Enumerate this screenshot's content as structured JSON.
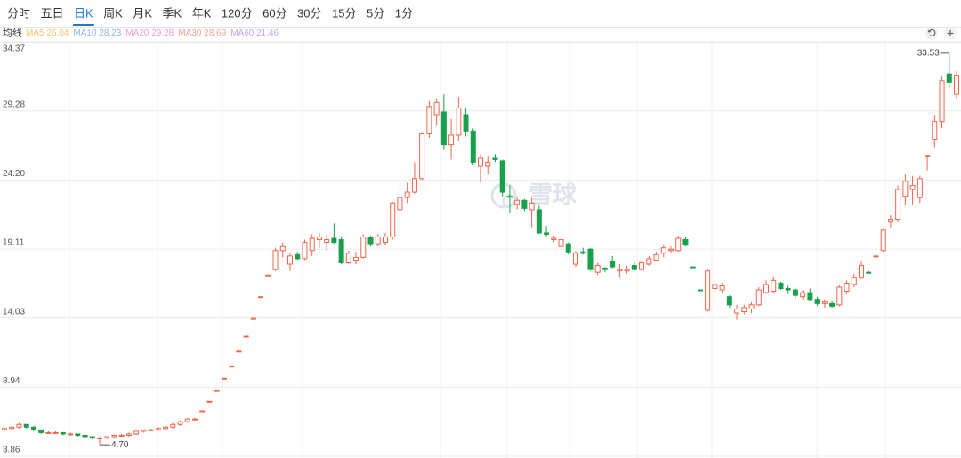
{
  "chart_data": {
    "type": "candlestick",
    "tabs": [
      "分时",
      "五日",
      "日K",
      "周K",
      "月K",
      "季K",
      "年K",
      "120分",
      "60分",
      "30分",
      "15分",
      "5分",
      "1分"
    ],
    "active_tab": 2,
    "indicator_title": "均线",
    "indicators": [
      {
        "label": "MA5 26.04",
        "color": "#f5c46e"
      },
      {
        "label": "MA10 28.23",
        "color": "#92b6ec"
      },
      {
        "label": "MA20 29.28",
        "color": "#ee9fd2"
      },
      {
        "label": "MA30 28.69",
        "color": "#f2a58f"
      },
      {
        "label": "MA60 21.46",
        "color": "#c3a6e6"
      }
    ],
    "watermark": "雪球",
    "up_color": "#f0654a",
    "down_color": "#18a04c",
    "ylim": [
      3.86,
      34.37
    ],
    "yticks": [
      3.86,
      8.94,
      14.03,
      19.11,
      {
        "value": 24.2,
        "label": "24.20"
      },
      29.28,
      34.37
    ],
    "grid": true,
    "high_label": "33.53",
    "low_label": "4.70",
    "open": [
      5.8,
      5.9,
      6.0,
      6.2,
      6.0,
      5.8,
      5.6,
      5.6,
      5.6,
      5.5,
      5.5,
      5.4,
      5.3,
      5.2,
      5.2,
      5.3,
      5.4,
      5.4,
      5.5,
      5.7,
      5.8,
      5.8,
      5.9,
      6.0,
      6.2,
      6.4,
      6.6,
      7.2,
      7.9,
      8.7,
      9.6,
      10.5,
      11.6,
      12.7,
      14.0,
      15.6,
      17.2,
      17.6,
      19.0,
      18.0,
      18.7,
      18.4,
      19.0,
      19.8,
      19.6,
      19.9,
      19.8,
      18.1,
      18.3,
      18.5,
      20.0,
      19.5,
      19.6,
      20.0,
      22.0,
      22.9,
      23.3,
      24.3,
      27.6,
      29.0,
      29.2,
      26.8,
      27.5,
      29.0,
      27.8,
      25.2,
      25.2,
      25.8,
      25.6,
      23.0,
      22.4,
      22.7,
      22.0,
      22.0,
      20.3,
      19.8,
      19.3,
      19.5,
      18.0,
      18.9,
      19.1,
      17.4,
      17.7,
      18.2,
      17.5,
      17.5,
      17.9,
      17.6,
      18.0,
      18.3,
      18.8,
      19.0,
      19.0,
      19.8,
      17.8,
      16.1,
      14.6,
      16.2,
      16.1,
      15.6,
      14.4,
      14.5,
      14.7,
      15.0,
      15.9,
      16.0,
      16.6,
      16.2,
      16.1,
      15.6,
      15.9,
      15.4,
      15.1,
      15.1,
      15.0,
      16.0,
      16.5,
      17.0,
      17.4,
      18.6,
      19.0,
      21.1,
      21.3,
      23.0,
      23.5,
      22.9,
      26.0,
      27.2,
      28.5,
      32.0,
      30.5
    ],
    "high": [
      5.9,
      6.1,
      6.3,
      6.2,
      6.1,
      5.8,
      5.7,
      5.7,
      5.6,
      5.6,
      5.5,
      5.4,
      5.3,
      5.3,
      5.3,
      5.4,
      5.5,
      5.6,
      5.7,
      5.8,
      5.9,
      6.0,
      6.1,
      6.3,
      6.5,
      6.7,
      6.7,
      7.2,
      7.9,
      8.7,
      9.6,
      10.5,
      11.6,
      12.7,
      14.0,
      15.6,
      17.2,
      19.2,
      19.6,
      18.8,
      18.9,
      19.8,
      20.2,
      20.3,
      20.2,
      21.0,
      20.0,
      19.0,
      18.9,
      20.2,
      20.1,
      20.2,
      20.3,
      22.6,
      23.8,
      24.0,
      25.5,
      27.7,
      30.0,
      30.2,
      30.5,
      28.7,
      30.3,
      29.5,
      28.0,
      26.1,
      26.0,
      26.1,
      25.7,
      23.8,
      23.0,
      22.8,
      22.9,
      22.3,
      20.8,
      20.1,
      20.0,
      19.6,
      19.0,
      19.2,
      19.2,
      18.1,
      17.8,
      18.6,
      18.0,
      17.9,
      18.2,
      18.3,
      18.6,
      18.9,
      19.4,
      19.3,
      20.1,
      20.0,
      17.8,
      16.1,
      17.6,
      16.8,
      16.6,
      15.7,
      15.0,
      15.0,
      15.2,
      16.3,
      16.8,
      17.1,
      16.7,
      16.4,
      16.2,
      16.1,
      16.2,
      15.6,
      15.4,
      15.3,
      16.5,
      16.8,
      17.3,
      18.2,
      17.5,
      18.6,
      20.6,
      21.6,
      23.8,
      24.6,
      24.5,
      24.5,
      26.0,
      29.0,
      31.8,
      33.53,
      32.2
    ],
    "low": [
      5.7,
      5.8,
      5.9,
      5.9,
      5.7,
      5.5,
      5.5,
      5.5,
      5.4,
      5.4,
      5.3,
      5.2,
      5.1,
      4.7,
      5.1,
      5.2,
      5.3,
      5.3,
      5.4,
      5.6,
      5.7,
      5.7,
      5.8,
      5.9,
      6.1,
      6.3,
      6.5,
      7.2,
      7.9,
      8.7,
      9.6,
      10.5,
      11.6,
      12.7,
      14.0,
      15.6,
      17.2,
      17.5,
      18.5,
      17.5,
      18.3,
      18.3,
      18.6,
      19.2,
      19.0,
      19.5,
      18.0,
      18.0,
      18.0,
      18.4,
      19.3,
      19.3,
      19.4,
      19.8,
      21.5,
      22.5,
      23.2,
      24.2,
      27.3,
      28.2,
      26.4,
      25.7,
      27.1,
      27.4,
      25.3,
      24.0,
      24.6,
      25.5,
      23.0,
      21.8,
      22.0,
      21.9,
      20.7,
      20.2,
      20.0,
      19.6,
      19.0,
      18.7,
      17.8,
      18.7,
      17.5,
      17.2,
      17.4,
      17.7,
      17.0,
      17.3,
      17.5,
      17.5,
      17.9,
      18.2,
      18.5,
      18.8,
      18.9,
      19.3,
      17.8,
      16.1,
      14.5,
      15.8,
      15.9,
      14.8,
      13.9,
      14.3,
      14.4,
      14.9,
      15.8,
      15.9,
      16.1,
      15.8,
      15.5,
      15.4,
      15.3,
      14.9,
      14.8,
      14.8,
      14.9,
      15.8,
      16.3,
      16.9,
      17.3,
      18.6,
      18.9,
      20.7,
      21.1,
      22.3,
      22.4,
      22.5,
      24.9,
      26.6,
      28.0,
      31.0,
      30.2
    ],
    "close": [
      5.9,
      6.0,
      6.2,
      6.0,
      5.8,
      5.6,
      5.6,
      5.6,
      5.5,
      5.5,
      5.4,
      5.3,
      5.2,
      5.2,
      5.3,
      5.4,
      5.4,
      5.5,
      5.7,
      5.8,
      5.8,
      5.9,
      6.0,
      6.2,
      6.4,
      6.6,
      6.6,
      7.2,
      7.9,
      8.7,
      9.6,
      10.5,
      11.6,
      12.7,
      14.0,
      15.6,
      17.2,
      19.0,
      19.3,
      18.6,
      18.4,
      19.6,
      19.9,
      20.0,
      19.8,
      19.6,
      18.1,
      18.8,
      18.5,
      20.0,
      19.5,
      20.0,
      20.0,
      22.5,
      22.9,
      23.3,
      24.3,
      27.6,
      29.6,
      29.9,
      26.8,
      27.5,
      29.5,
      27.8,
      25.5,
      25.8,
      25.5,
      25.7,
      23.3,
      23.0,
      22.7,
      22.1,
      22.5,
      20.3,
      20.2,
      19.9,
      19.8,
      18.9,
      18.8,
      18.8,
      17.6,
      17.9,
      17.6,
      17.8,
      17.6,
      17.6,
      17.6,
      18.1,
      18.4,
      18.7,
      19.2,
      19.1,
      19.9,
      19.4,
      17.8,
      16.1,
      17.5,
      16.5,
      16.4,
      15.0,
      14.7,
      14.8,
      15.0,
      16.1,
      16.5,
      16.8,
      16.2,
      16.1,
      15.7,
      15.9,
      15.4,
      15.1,
      15.2,
      14.9,
      16.3,
      16.6,
      17.0,
      17.9,
      17.4,
      18.6,
      20.5,
      21.3,
      23.5,
      24.1,
      23.8,
      24.3,
      26.0,
      28.5,
      31.5,
      31.4,
      31.9
    ]
  }
}
